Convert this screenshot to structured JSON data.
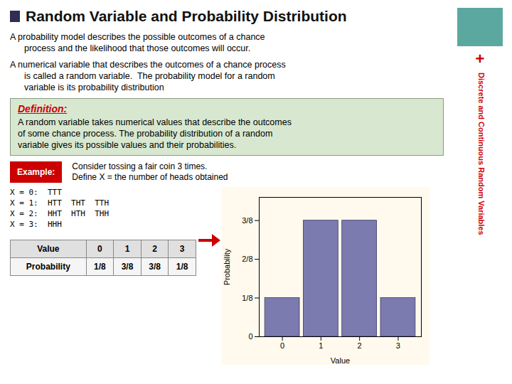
{
  "chart_data": {
    "type": "bar",
    "title": "Random Variable and Probability Distribution",
    "x": [
      0,
      1,
      2,
      3
    ],
    "values": [
      0.125,
      0.375,
      0.375,
      0.125
    ],
    "color": "#7B7BB0",
    "xlabel": "Value",
    "ylabel": "Probability",
    "xlim": [
      -0.6,
      3.6
    ],
    "ylim": [
      0,
      0.45
    ],
    "xticks": [
      0,
      1,
      2,
      3
    ],
    "yticks": [
      0,
      {
        "value": 0.125,
        "label": "1/8"
      },
      {
        "value": 0.25,
        "label": "2/8"
      },
      {
        "value": 0.375,
        "label": "3/8"
      }
    ],
    "paragraphs": [
      [
        "A probability model describes the possible outcomes of a chance",
        "process and the likelihood that those outcomes will occur."
      ],
      [
        "A numerical variable that describes the outcomes of a chance process",
        "is called a random variable.  The probability model for a random",
        "variable is its probability distribution"
      ]
    ],
    "definition": {
      "title": "Definition:",
      "lines": [
        "A random variable takes numerical values that describe the outcomes",
        "of some chance process. The probability distribution of a random",
        "variable gives its possible values and their probabilities."
      ]
    },
    "example": {
      "label": "Example:",
      "lines": [
        "Consider tossing a fair coin 3 times.",
        "Define X = the number of heads obtained"
      ]
    },
    "outcomes": [
      "X = 0:  TTT",
      "X = 1:  HTT  THT  TTH",
      "X = 2:  HHT  HTH  THH",
      "X = 3:  HHH"
    ],
    "table": {
      "headers": [
        "Value",
        "0",
        "1",
        "2",
        "3"
      ],
      "rows": [
        [
          "Probability",
          "1/8",
          "3/8",
          "3/8",
          "1/8"
        ]
      ]
    },
    "sidebar": [
      "+",
      "Discrete and Continuous Random Variables"
    ]
  }
}
